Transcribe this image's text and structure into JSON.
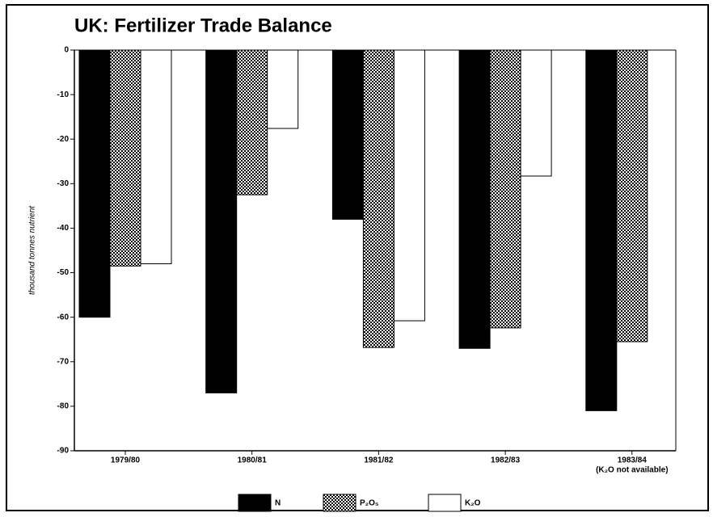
{
  "chart_data": {
    "type": "bar",
    "title": "UK: Fertilizer Trade Balance",
    "ylabel": "thousand tonnes nutrient",
    "categories": [
      "1979/80",
      "1980/81",
      "1981/82",
      "1982/83",
      "1983/84"
    ],
    "note": "(K₂O not available)",
    "series": [
      {
        "name": "N",
        "color": "#000000",
        "values": [
          -60,
          -77,
          -38,
          -67,
          -81
        ]
      },
      {
        "name": "P₂O₅",
        "color": "#8c8c8c",
        "values": [
          -48.5,
          -32.5,
          -66.8,
          -62.4,
          -65.5
        ]
      },
      {
        "name": "K₂O",
        "color": "#ffffff",
        "values": [
          -48,
          -17.6,
          -60.8,
          -28.3,
          null
        ]
      }
    ],
    "ylim": [
      -90,
      0
    ],
    "yticks": [
      0,
      -10,
      -20,
      -30,
      -40,
      -50,
      -60,
      -70,
      -80,
      -90
    ]
  }
}
